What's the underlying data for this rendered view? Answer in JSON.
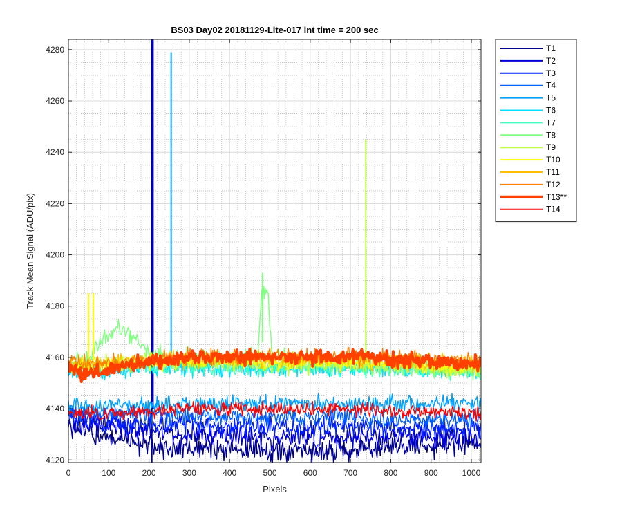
{
  "chart_data": {
    "type": "line",
    "title": "BS03 Day02 20181129-Lite-017 int time = 200 sec",
    "xlabel": "Pixels",
    "ylabel": "Track Mean Signal (ADU/pix)",
    "xlim": [
      0,
      1024
    ],
    "ylim": [
      4119,
      4284
    ],
    "xticks": [
      0,
      100,
      200,
      300,
      400,
      500,
      600,
      700,
      800,
      900,
      1000
    ],
    "yticks": [
      4120,
      4140,
      4160,
      4180,
      4200,
      4220,
      4240,
      4260,
      4280
    ],
    "grid": "major and minor",
    "legend_position": "outside-right-top",
    "series": [
      {
        "name": "T1",
        "color": "#00008f",
        "points": [
          [
            0,
            4133
          ],
          [
            60,
            4130
          ],
          [
            120,
            4128
          ],
          [
            200,
            4126
          ],
          [
            300,
            4124
          ],
          [
            400,
            4124
          ],
          [
            500,
            4123
          ],
          [
            600,
            4123
          ],
          [
            700,
            4124
          ],
          [
            800,
            4125
          ],
          [
            900,
            4126
          ],
          [
            1024,
            4127
          ]
        ],
        "noise": 2.2,
        "spikes": [
          [
            207,
            4119,
            4284
          ]
        ]
      },
      {
        "name": "T2",
        "color": "#0000d9",
        "points": [
          [
            0,
            4136
          ],
          [
            100,
            4133
          ],
          [
            200,
            4131
          ],
          [
            300,
            4130
          ],
          [
            400,
            4130
          ],
          [
            500,
            4129
          ],
          [
            600,
            4129
          ],
          [
            700,
            4129
          ],
          [
            800,
            4129
          ],
          [
            900,
            4129
          ],
          [
            1024,
            4129
          ]
        ],
        "noise": 2.0,
        "spikes": [
          [
            210,
            4140,
            4284
          ]
        ]
      },
      {
        "name": "T3",
        "color": "#0020ff",
        "points": [
          [
            0,
            4137
          ],
          [
            100,
            4135
          ],
          [
            200,
            4134
          ],
          [
            300,
            4134
          ],
          [
            400,
            4133
          ],
          [
            500,
            4133
          ],
          [
            600,
            4133
          ],
          [
            700,
            4133
          ],
          [
            800,
            4133
          ],
          [
            900,
            4132
          ],
          [
            1024,
            4132
          ]
        ],
        "noise": 1.8,
        "spikes": []
      },
      {
        "name": "T4",
        "color": "#0060ff",
        "points": [
          [
            0,
            4139
          ],
          [
            100,
            4138
          ],
          [
            200,
            4138
          ],
          [
            300,
            4137
          ],
          [
            400,
            4137
          ],
          [
            500,
            4137
          ],
          [
            600,
            4137
          ],
          [
            700,
            4137
          ],
          [
            800,
            4136
          ],
          [
            900,
            4136
          ],
          [
            1024,
            4136
          ]
        ],
        "noise": 1.6,
        "spikes": []
      },
      {
        "name": "T5",
        "color": "#00a0ff",
        "points": [
          [
            0,
            4141
          ],
          [
            100,
            4141
          ],
          [
            200,
            4141
          ],
          [
            300,
            4142
          ],
          [
            400,
            4142
          ],
          [
            500,
            4142
          ],
          [
            600,
            4142
          ],
          [
            700,
            4142
          ],
          [
            800,
            4142
          ],
          [
            900,
            4142
          ],
          [
            1024,
            4142
          ]
        ],
        "noise": 1.6,
        "spikes": [
          [
            255,
            4156,
            4279
          ]
        ]
      },
      {
        "name": "T6",
        "color": "#00dfff",
        "points": [
          [
            0,
            4154
          ],
          [
            100,
            4155
          ],
          [
            200,
            4156
          ],
          [
            300,
            4156
          ],
          [
            400,
            4156
          ],
          [
            500,
            4156
          ],
          [
            600,
            4156
          ],
          [
            700,
            4156
          ],
          [
            800,
            4156
          ],
          [
            900,
            4155
          ],
          [
            1024,
            4155
          ]
        ],
        "noise": 1.7,
        "spikes": []
      },
      {
        "name": "T7",
        "color": "#40ffbf",
        "points": [
          [
            0,
            4156
          ],
          [
            100,
            4157
          ],
          [
            200,
            4157
          ],
          [
            300,
            4157
          ],
          [
            400,
            4156
          ],
          [
            500,
            4156
          ],
          [
            600,
            4156
          ],
          [
            700,
            4156
          ],
          [
            800,
            4156
          ],
          [
            900,
            4155
          ],
          [
            1024,
            4154
          ]
        ],
        "noise": 1.6,
        "spikes": []
      },
      {
        "name": "T8",
        "color": "#80ff80",
        "points": [
          [
            0,
            4157
          ],
          [
            60,
            4160
          ],
          [
            80,
            4166
          ],
          [
            120,
            4172
          ],
          [
            160,
            4167
          ],
          [
            200,
            4161
          ],
          [
            300,
            4160
          ],
          [
            400,
            4159
          ],
          [
            470,
            4160
          ],
          [
            480,
            4186
          ],
          [
            495,
            4185
          ],
          [
            505,
            4160
          ],
          [
            600,
            4158
          ],
          [
            700,
            4158
          ],
          [
            800,
            4157
          ],
          [
            900,
            4156
          ],
          [
            1024,
            4154
          ]
        ],
        "noise": 1.8,
        "spikes": [
          [
            482,
            4166,
            4193
          ]
        ]
      },
      {
        "name": "T9",
        "color": "#bfff40",
        "points": [
          [
            0,
            4157
          ],
          [
            100,
            4158
          ],
          [
            200,
            4158
          ],
          [
            300,
            4158
          ],
          [
            400,
            4158
          ],
          [
            500,
            4157
          ],
          [
            600,
            4157
          ],
          [
            700,
            4157
          ],
          [
            800,
            4157
          ],
          [
            900,
            4156
          ],
          [
            1024,
            4155
          ]
        ],
        "noise": 1.6,
        "spikes": [
          [
            738,
            4160,
            4245
          ]
        ]
      },
      {
        "name": "T10",
        "color": "#ffff00",
        "points": [
          [
            0,
            4156
          ],
          [
            100,
            4157
          ],
          [
            200,
            4158
          ],
          [
            300,
            4158
          ],
          [
            400,
            4158
          ],
          [
            500,
            4158
          ],
          [
            600,
            4158
          ],
          [
            700,
            4158
          ],
          [
            800,
            4158
          ],
          [
            900,
            4157
          ],
          [
            1024,
            4156
          ]
        ],
        "noise": 1.6,
        "spikes": [
          [
            50,
            4158,
            4185
          ],
          [
            62,
            4158,
            4185
          ]
        ]
      },
      {
        "name": "T11",
        "color": "#ffbf00",
        "points": [
          [
            0,
            4157
          ],
          [
            100,
            4158
          ],
          [
            200,
            4159
          ],
          [
            300,
            4159
          ],
          [
            400,
            4159
          ],
          [
            500,
            4159
          ],
          [
            600,
            4159
          ],
          [
            700,
            4159
          ],
          [
            800,
            4159
          ],
          [
            900,
            4158
          ],
          [
            1024,
            4158
          ]
        ],
        "noise": 1.6,
        "spikes": []
      },
      {
        "name": "T12",
        "color": "#ff8000",
        "points": [
          [
            0,
            4158
          ],
          [
            100,
            4158
          ],
          [
            200,
            4159
          ],
          [
            300,
            4160
          ],
          [
            400,
            4160
          ],
          [
            500,
            4160
          ],
          [
            600,
            4160
          ],
          [
            700,
            4160
          ],
          [
            800,
            4160
          ],
          [
            900,
            4159
          ],
          [
            1024,
            4158
          ]
        ],
        "noise": 1.6,
        "spikes": []
      },
      {
        "name": "T13**",
        "color": "#ff4000",
        "width": 4,
        "points": [
          [
            0,
            4157
          ],
          [
            40,
            4153
          ],
          [
            80,
            4155
          ],
          [
            150,
            4157
          ],
          [
            250,
            4159
          ],
          [
            350,
            4160
          ],
          [
            450,
            4160
          ],
          [
            550,
            4160
          ],
          [
            650,
            4160
          ],
          [
            750,
            4160
          ],
          [
            850,
            4159
          ],
          [
            950,
            4158
          ],
          [
            1024,
            4157
          ]
        ],
        "noise": 1.4,
        "spikes": []
      },
      {
        "name": "T14",
        "color": "#ff0000",
        "points": [
          [
            0,
            4138
          ],
          [
            100,
            4138
          ],
          [
            200,
            4139
          ],
          [
            300,
            4140
          ],
          [
            400,
            4140
          ],
          [
            500,
            4140
          ],
          [
            600,
            4140
          ],
          [
            700,
            4140
          ],
          [
            800,
            4139
          ],
          [
            900,
            4139
          ],
          [
            1024,
            4138
          ]
        ],
        "noise": 1.3,
        "spikes": []
      }
    ]
  }
}
